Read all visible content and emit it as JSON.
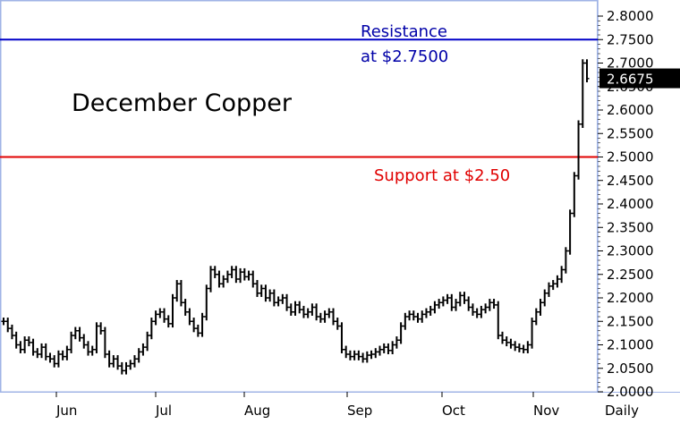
{
  "chart_data": {
    "type": "line",
    "style": "ohlc-bar",
    "title": "December Copper",
    "xlabel": "Daily",
    "ylim": [
      2.0,
      2.8
    ],
    "y_ticks": [
      "2.8000",
      "2.7500",
      "2.7000",
      "2.6500",
      "2.6000",
      "2.5500",
      "2.5000",
      "2.4500",
      "2.4000",
      "2.3500",
      "2.3000",
      "2.2500",
      "2.2000",
      "2.1500",
      "2.1000",
      "2.0500",
      "2.0000"
    ],
    "x_labels": [
      "Jun",
      "Jul",
      "Aug",
      "Sep",
      "Oct",
      "Nov"
    ],
    "last_price": "2.6675",
    "grid": false,
    "colors": {
      "resistance": "#0000c8",
      "support": "#e00000",
      "bars": "#000000",
      "frame": "#a0b4e6"
    },
    "annotations": {
      "resistance_line1": "Resistance",
      "resistance_line2": "at $2.7500",
      "support": "Support at $2.50"
    },
    "lines": [
      {
        "name": "Resistance",
        "y": 2.75
      },
      {
        "name": "Support",
        "y": 2.5
      }
    ],
    "series": [
      {
        "values": [
          2.15,
          2.135,
          2.12,
          2.1,
          2.09,
          2.11,
          2.105,
          2.085,
          2.08,
          2.095,
          2.075,
          2.07,
          2.06,
          2.08,
          2.075,
          2.09,
          2.12,
          2.13,
          2.115,
          2.1,
          2.085,
          2.09,
          2.14,
          2.13,
          2.08,
          2.06,
          2.07,
          2.055,
          2.045,
          2.055,
          2.06,
          2.07,
          2.085,
          2.095,
          2.12,
          2.15,
          2.165,
          2.17,
          2.155,
          2.145,
          2.2,
          2.23,
          2.19,
          2.17,
          2.15,
          2.135,
          2.125,
          2.16,
          2.22,
          2.26,
          2.25,
          2.23,
          2.24,
          2.25,
          2.26,
          2.24,
          2.255,
          2.245,
          2.25,
          2.23,
          2.21,
          2.22,
          2.2,
          2.21,
          2.19,
          2.195,
          2.2,
          2.18,
          2.17,
          2.185,
          2.175,
          2.165,
          2.17,
          2.18,
          2.16,
          2.155,
          2.165,
          2.17,
          2.15,
          2.14,
          2.09,
          2.08,
          2.075,
          2.08,
          2.075,
          2.07,
          2.078,
          2.08,
          2.085,
          2.09,
          2.095,
          2.088,
          2.1,
          2.11,
          2.14,
          2.16,
          2.165,
          2.16,
          2.155,
          2.165,
          2.17,
          2.175,
          2.185,
          2.19,
          2.195,
          2.2,
          2.18,
          2.19,
          2.205,
          2.195,
          2.18,
          2.17,
          2.165,
          2.175,
          2.18,
          2.19,
          2.185,
          2.12,
          2.11,
          2.105,
          2.1,
          2.095,
          2.092,
          2.09,
          2.1,
          2.15,
          2.17,
          2.19,
          2.21,
          2.225,
          2.23,
          2.24,
          2.26,
          2.3,
          2.38,
          2.46,
          2.57,
          2.7,
          2.667
        ]
      }
    ]
  }
}
